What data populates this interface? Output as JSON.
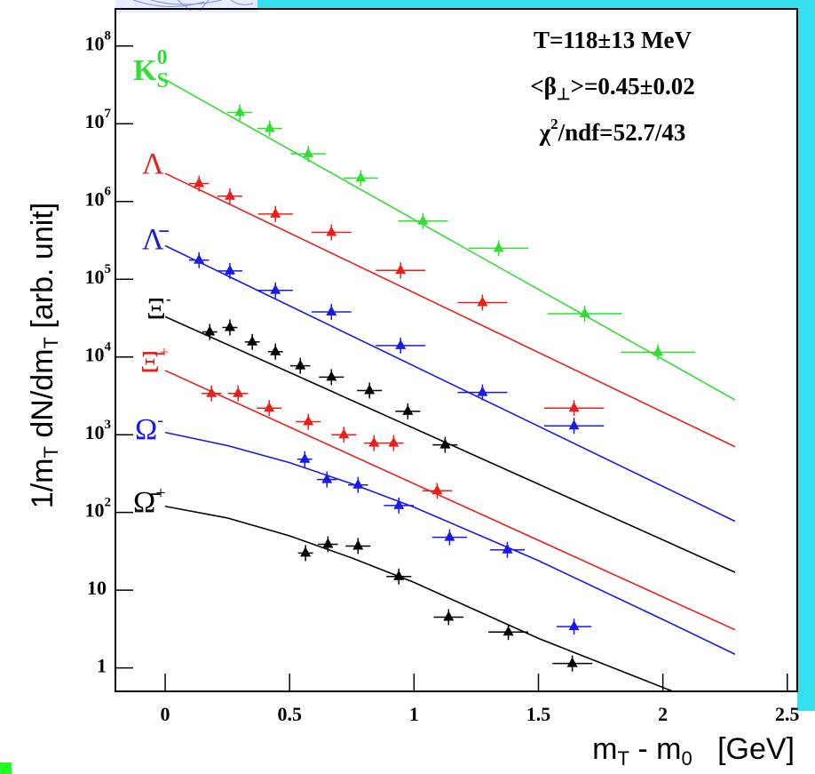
{
  "chart_data": {
    "type": "scatter",
    "log_y": true,
    "xlim": [
      -0.2,
      2.54
    ],
    "ylim": [
      0.5,
      300000000
    ],
    "xticks": [
      0,
      0.5,
      1,
      1.5,
      2,
      2.5
    ],
    "yticks": [
      {
        "value": 1,
        "label": "1"
      },
      {
        "value": 10,
        "label": "10"
      },
      {
        "value": 100,
        "label": "10",
        "exponent": "2"
      },
      {
        "value": 1000,
        "label": "10",
        "exponent": "3"
      },
      {
        "value": 10000,
        "label": "10",
        "exponent": "4"
      },
      {
        "value": 100000,
        "label": "10",
        "exponent": "5"
      },
      {
        "value": 1000000,
        "label": "10",
        "exponent": "6"
      },
      {
        "value": 10000000,
        "label": "10",
        "exponent": "7"
      },
      {
        "value": 100000000,
        "label": "10",
        "exponent": "8"
      }
    ],
    "xlabel": [
      "m",
      "T",
      " - m",
      "0",
      "   [GeV]"
    ],
    "ylabel": [
      "1/m",
      "T",
      " dN/dm",
      "T",
      "  [arb. unit]"
    ],
    "annotations": [
      "T=118±13 MeV"
    ],
    "annotation_beta": {
      "pre": "<β",
      "sub": "⊥",
      "post": ">=0.45±0.02"
    },
    "annotation_chi": {
      "pre": "χ",
      "sup": "2",
      "post": "/ndf=52.7/43"
    },
    "series": [
      {
        "name": "K",
        "sub": "S",
        "sup": "0",
        "color": "#33dd33",
        "x": [
          0.3,
          0.42,
          0.575,
          0.786,
          1.036,
          1.34,
          1.686,
          1.98
        ],
        "values": [
          14000000,
          8700000,
          4100000,
          2000000,
          560000,
          250000,
          36000,
          11500
        ],
        "xerr": [
          0.05,
          0.05,
          0.07,
          0.07,
          0.1,
          0.12,
          0.15,
          0.15
        ],
        "fit_x": [
          0,
          2.29
        ],
        "fit_values": [
          37000000,
          2800
        ]
      },
      {
        "name": "Λ",
        "color": "#e8201a",
        "x": [
          0.136,
          0.26,
          0.443,
          0.668,
          0.946,
          1.275,
          1.643
        ],
        "values": [
          1700000,
          1170000,
          690000,
          400000,
          130000,
          50000,
          2200
        ],
        "xerr": [
          0.04,
          0.05,
          0.07,
          0.08,
          0.1,
          0.1,
          0.12
        ],
        "fit_x": [
          0,
          2.29
        ],
        "fit_values": [
          2300000,
          700
        ]
      },
      {
        "name": "Λ̄",
        "color": "#1a1ae8",
        "x": [
          0.136,
          0.26,
          0.443,
          0.668,
          0.946,
          1.275,
          1.643
        ],
        "values": [
          176000,
          128000,
          72000,
          38000,
          14000,
          3500,
          1300
        ],
        "xerr": [
          0.04,
          0.05,
          0.07,
          0.08,
          0.1,
          0.1,
          0.12
        ],
        "fit_x": [
          0,
          2.29
        ],
        "fit_values": [
          270000,
          77
        ]
      },
      {
        "name": "Ξ",
        "sup": "-",
        "color": "#000000",
        "x": [
          0.179,
          0.26,
          0.35,
          0.443,
          0.543,
          0.668,
          0.821,
          0.975,
          1.125
        ],
        "values": [
          21000,
          24000,
          15600,
          11700,
          7700,
          5500,
          3700,
          2000,
          740
        ],
        "xerr": [
          0.03,
          0.03,
          0.03,
          0.03,
          0.04,
          0.05,
          0.05,
          0.05,
          0.05
        ],
        "fit_x": [
          0,
          2.29
        ],
        "fit_values": [
          33000,
          17
        ]
      },
      {
        "name": "Ξ̄",
        "sup": "+",
        "color": "#e8201a",
        "x": [
          0.186,
          0.293,
          0.418,
          0.575,
          0.718,
          0.839,
          0.918,
          1.093
        ],
        "values": [
          3400,
          3400,
          2200,
          1470,
          1000,
          780,
          780,
          190
        ],
        "xerr": [
          0.04,
          0.04,
          0.05,
          0.05,
          0.05,
          0.04,
          0.04,
          0.06
        ],
        "fit_x": [
          0,
          2.29
        ],
        "fit_values": [
          6700,
          3.1
        ]
      },
      {
        "name": "Ω",
        "sup": "-",
        "color": "#1a1ae8",
        "x": [
          0.561,
          0.65,
          0.775,
          0.939,
          1.143,
          1.375,
          1.643
        ],
        "values": [
          485,
          265,
          226,
          123,
          48,
          33,
          3.4
        ],
        "xerr": [
          0.03,
          0.04,
          0.04,
          0.06,
          0.07,
          0.07,
          0.07
        ],
        "fit_x": [
          0,
          0.25,
          0.5,
          0.75,
          1,
          1.5,
          2,
          2.29
        ],
        "fit_values": [
          1070,
          725,
          437,
          234,
          117,
          24,
          4.2,
          1.5
        ]
      },
      {
        "name": "Ω̄",
        "sup": "+",
        "color": "#000000",
        "x": [
          0.564,
          0.654,
          0.775,
          0.939,
          1.139,
          1.379,
          1.636
        ],
        "values": [
          30,
          39,
          37,
          15,
          4.5,
          2.9,
          1.14
        ],
        "xerr": [
          0.03,
          0.04,
          0.05,
          0.05,
          0.06,
          0.08,
          0.08
        ],
        "fit_x": [
          0,
          0.25,
          0.5,
          0.75,
          1,
          1.5,
          2.04
        ],
        "fit_values": [
          120,
          85,
          50,
          26,
          12.6,
          2.4,
          0.5
        ]
      }
    ]
  }
}
